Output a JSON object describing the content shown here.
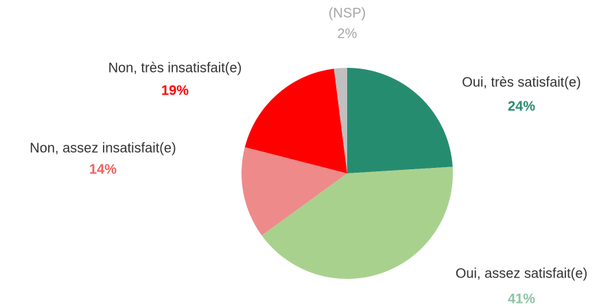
{
  "chart_data": {
    "type": "pie",
    "categories": [
      "Oui, très satisfait(e)",
      "Oui, assez satisfait(e)",
      "Non, assez insatisfait(e)",
      "Non, très insatisfait(e)",
      "(NSP)"
    ],
    "values": [
      24,
      41,
      14,
      19,
      2
    ],
    "value_labels": [
      "24%",
      "41%",
      "14%",
      "19%",
      "2%"
    ],
    "colors": [
      "#268c70",
      "#a9d18e",
      "#ee8a8a",
      "#ff0000",
      "#c0c0c0"
    ],
    "label_colors": [
      "#268c70",
      "#8cc4a4",
      "#f0605c",
      "#ff0000",
      "#a6a6a6"
    ],
    "name_colors": [
      "#333333",
      "#333333",
      "#333333",
      "#333333",
      "#a6a6a6"
    ]
  }
}
